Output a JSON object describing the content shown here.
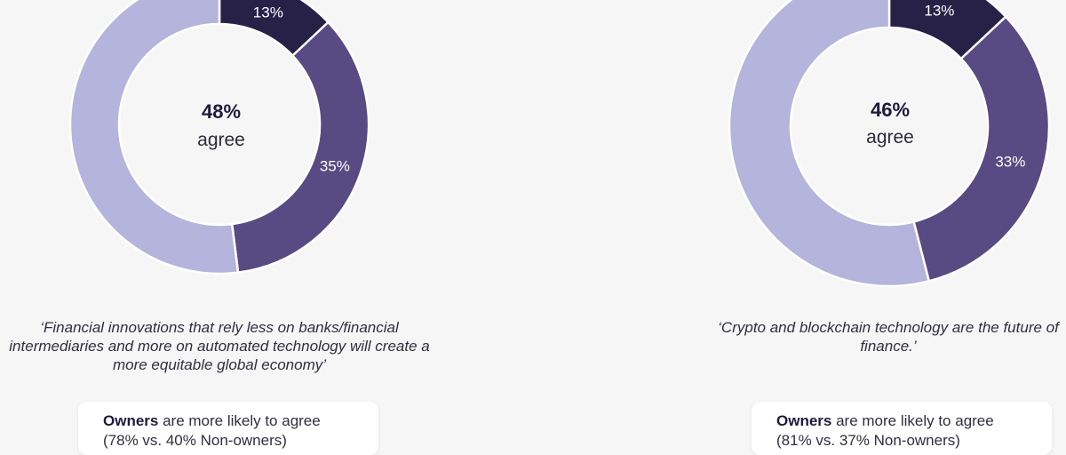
{
  "chart_data": [
    {
      "type": "pie",
      "slices": [
        {
          "label": "13%",
          "value": 13,
          "color": "#272148"
        },
        {
          "label": "35%",
          "value": 35,
          "color": "#584a82"
        },
        {
          "value": 52,
          "color": "#b4b4dc"
        }
      ],
      "center": {
        "value": "48%",
        "label": "agree"
      },
      "quote": "‘Financial innovations that rely less on banks/financial intermediaries and more on automated technology will create a more equitable global economy’",
      "note": {
        "bold": "Owners",
        "text": " are more likely to agree",
        "sub": "(78% vs. 40% Non-owners)"
      }
    },
    {
      "type": "pie",
      "slices": [
        {
          "label": "13%",
          "value": 13,
          "color": "#272148"
        },
        {
          "label": "33%",
          "value": 33,
          "color": "#584a82"
        },
        {
          "value": 54,
          "color": "#b4b4dc"
        }
      ],
      "center": {
        "value": "46%",
        "label": "agree"
      },
      "quote": "‘Crypto and blockchain technology are the future of finance.’",
      "note": {
        "bold": "Owners",
        "text": " are more likely to agree",
        "sub": "(81% vs. 37% Non-owners)"
      }
    }
  ]
}
